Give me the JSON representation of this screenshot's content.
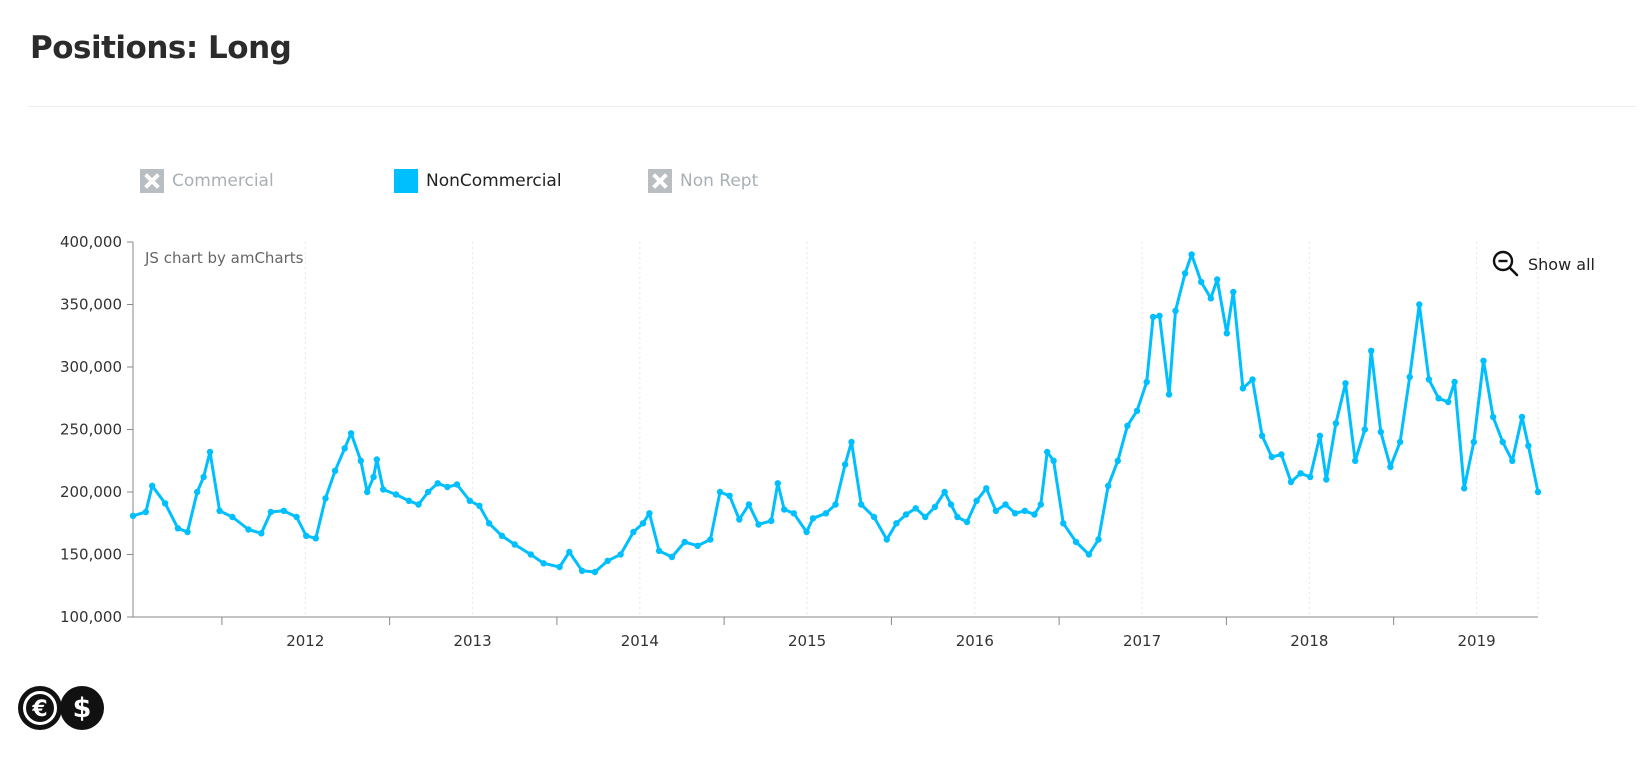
{
  "page": {
    "title": "Positions: Long"
  },
  "legend": [
    {
      "label": "Commercial",
      "active": false
    },
    {
      "label": "NonCommercial",
      "active": true,
      "color": "#00bfff"
    },
    {
      "label": "Non Rept",
      "active": false
    }
  ],
  "chart_credit": "JS chart by amCharts",
  "zoom_control": {
    "label": "Show all",
    "icon": "zoom-out-icon"
  },
  "logo": {
    "icon": "euro-dollar-logo"
  },
  "colors": {
    "series": "#00bfff",
    "axis": "#888888",
    "grid": "#e6e6e6",
    "title": "#2b2b2b"
  },
  "chart_data": {
    "type": "line",
    "title": "Positions: Long",
    "xlabel": "",
    "ylabel": "",
    "ylim": [
      100000,
      400000
    ],
    "y_ticks": [
      "400,000",
      "350,000",
      "300,000",
      "250,000",
      "200,000",
      "150,000",
      "100,000"
    ],
    "y_tick_values": [
      400000,
      350000,
      300000,
      250000,
      200000,
      150000,
      100000
    ],
    "x_tick_labels": [
      "2012",
      "2013",
      "2014",
      "2015",
      "2016",
      "2017",
      "2018",
      "2019"
    ],
    "xlim": [
      "2011-06-21",
      "2019-11-12"
    ],
    "x_axis_type": "date",
    "grid": true,
    "legend_position": "top-left",
    "series": [
      {
        "name": "NonCommercial",
        "color": "#00bfff",
        "points": [
          [
            "2011-06-21",
            181000
          ],
          [
            "2011-07-19",
            184000
          ],
          [
            "2011-08-02",
            205000
          ],
          [
            "2011-08-30",
            191000
          ],
          [
            "2011-09-27",
            171000
          ],
          [
            "2011-10-18",
            168000
          ],
          [
            "2011-11-08",
            200000
          ],
          [
            "2011-11-22",
            212000
          ],
          [
            "2011-12-06",
            232000
          ],
          [
            "2011-12-27",
            185000
          ],
          [
            "2012-01-24",
            180000
          ],
          [
            "2012-02-28",
            170000
          ],
          [
            "2012-03-27",
            167000
          ],
          [
            "2012-04-17",
            184000
          ],
          [
            "2012-05-15",
            185000
          ],
          [
            "2012-06-12",
            180000
          ],
          [
            "2012-07-03",
            165000
          ],
          [
            "2012-07-24",
            163000
          ],
          [
            "2012-08-14",
            195000
          ],
          [
            "2012-09-04",
            217000
          ],
          [
            "2012-09-25",
            235000
          ],
          [
            "2012-10-09",
            247000
          ],
          [
            "2012-10-30",
            225000
          ],
          [
            "2012-11-13",
            200000
          ],
          [
            "2012-11-27",
            212000
          ],
          [
            "2012-12-04",
            226000
          ],
          [
            "2012-12-18",
            202000
          ],
          [
            "2013-01-15",
            198000
          ],
          [
            "2013-02-12",
            193000
          ],
          [
            "2013-03-05",
            190000
          ],
          [
            "2013-03-26",
            200000
          ],
          [
            "2013-04-16",
            207000
          ],
          [
            "2013-05-07",
            204000
          ],
          [
            "2013-05-28",
            206000
          ],
          [
            "2013-06-25",
            193000
          ],
          [
            "2013-07-16",
            189000
          ],
          [
            "2013-08-06",
            175000
          ],
          [
            "2013-09-03",
            165000
          ],
          [
            "2013-10-01",
            158000
          ],
          [
            "2013-11-05",
            150000
          ],
          [
            "2013-12-03",
            143000
          ],
          [
            "2014-01-07",
            140000
          ],
          [
            "2014-01-28",
            152000
          ],
          [
            "2014-02-25",
            137000
          ],
          [
            "2014-03-25",
            136000
          ],
          [
            "2014-04-22",
            145000
          ],
          [
            "2014-05-20",
            150000
          ],
          [
            "2014-06-17",
            168000
          ],
          [
            "2014-07-08",
            175000
          ],
          [
            "2014-07-22",
            183000
          ],
          [
            "2014-08-12",
            153000
          ],
          [
            "2014-09-09",
            148000
          ],
          [
            "2014-10-07",
            160000
          ],
          [
            "2014-11-04",
            157000
          ],
          [
            "2014-12-02",
            162000
          ],
          [
            "2014-12-23",
            200000
          ],
          [
            "2015-01-13",
            197000
          ],
          [
            "2015-02-03",
            178000
          ],
          [
            "2015-02-24",
            190000
          ],
          [
            "2015-03-17",
            174000
          ],
          [
            "2015-04-14",
            177000
          ],
          [
            "2015-04-28",
            207000
          ],
          [
            "2015-05-12",
            186000
          ],
          [
            "2015-06-02",
            183000
          ],
          [
            "2015-06-30",
            168000
          ],
          [
            "2015-07-14",
            179000
          ],
          [
            "2015-08-11",
            183000
          ],
          [
            "2015-09-01",
            190000
          ],
          [
            "2015-09-22",
            222000
          ],
          [
            "2015-10-06",
            240000
          ],
          [
            "2015-10-27",
            190000
          ],
          [
            "2015-11-24",
            180000
          ],
          [
            "2015-12-22",
            162000
          ],
          [
            "2016-01-12",
            175000
          ],
          [
            "2016-02-02",
            182000
          ],
          [
            "2016-02-23",
            187000
          ],
          [
            "2016-03-15",
            180000
          ],
          [
            "2016-04-05",
            188000
          ],
          [
            "2016-04-26",
            200000
          ],
          [
            "2016-05-10",
            190000
          ],
          [
            "2016-05-24",
            180000
          ],
          [
            "2016-06-14",
            176000
          ],
          [
            "2016-07-05",
            193000
          ],
          [
            "2016-07-26",
            203000
          ],
          [
            "2016-08-16",
            185000
          ],
          [
            "2016-09-06",
            190000
          ],
          [
            "2016-09-27",
            183000
          ],
          [
            "2016-10-18",
            185000
          ],
          [
            "2016-11-08",
            182000
          ],
          [
            "2016-11-22",
            190000
          ],
          [
            "2016-12-06",
            232000
          ],
          [
            "2016-12-20",
            225000
          ],
          [
            "2017-01-10",
            175000
          ],
          [
            "2017-02-07",
            160000
          ],
          [
            "2017-03-07",
            150000
          ],
          [
            "2017-03-28",
            162000
          ],
          [
            "2017-04-18",
            205000
          ],
          [
            "2017-05-09",
            225000
          ],
          [
            "2017-05-30",
            253000
          ],
          [
            "2017-06-20",
            265000
          ],
          [
            "2017-07-11",
            288000
          ],
          [
            "2017-07-25",
            340000
          ],
          [
            "2017-08-08",
            341000
          ],
          [
            "2017-08-29",
            278000
          ],
          [
            "2017-09-12",
            345000
          ],
          [
            "2017-10-03",
            375000
          ],
          [
            "2017-10-17",
            390000
          ],
          [
            "2017-11-07",
            368000
          ],
          [
            "2017-11-28",
            355000
          ],
          [
            "2017-12-12",
            370000
          ],
          [
            "2018-01-02",
            327000
          ],
          [
            "2018-01-16",
            360000
          ],
          [
            "2018-02-06",
            283000
          ],
          [
            "2018-02-27",
            290000
          ],
          [
            "2018-03-20",
            245000
          ],
          [
            "2018-04-10",
            228000
          ],
          [
            "2018-05-01",
            230000
          ],
          [
            "2018-05-22",
            208000
          ],
          [
            "2018-06-12",
            215000
          ],
          [
            "2018-07-03",
            212000
          ],
          [
            "2018-07-24",
            245000
          ],
          [
            "2018-08-07",
            210000
          ],
          [
            "2018-08-28",
            255000
          ],
          [
            "2018-09-18",
            287000
          ],
          [
            "2018-10-09",
            225000
          ],
          [
            "2018-10-30",
            250000
          ],
          [
            "2018-11-13",
            313000
          ],
          [
            "2018-12-04",
            248000
          ],
          [
            "2018-12-25",
            220000
          ],
          [
            "2019-01-15",
            240000
          ],
          [
            "2019-02-05",
            292000
          ],
          [
            "2019-02-26",
            350000
          ],
          [
            "2019-03-19",
            290000
          ],
          [
            "2019-04-09",
            275000
          ],
          [
            "2019-04-30",
            272000
          ],
          [
            "2019-05-14",
            288000
          ],
          [
            "2019-06-04",
            203000
          ],
          [
            "2019-06-25",
            240000
          ],
          [
            "2019-07-16",
            305000
          ],
          [
            "2019-08-06",
            260000
          ],
          [
            "2019-08-27",
            240000
          ],
          [
            "2019-09-17",
            225000
          ],
          [
            "2019-10-08",
            260000
          ],
          [
            "2019-10-22",
            237000
          ],
          [
            "2019-11-12",
            200000
          ]
        ]
      }
    ]
  }
}
